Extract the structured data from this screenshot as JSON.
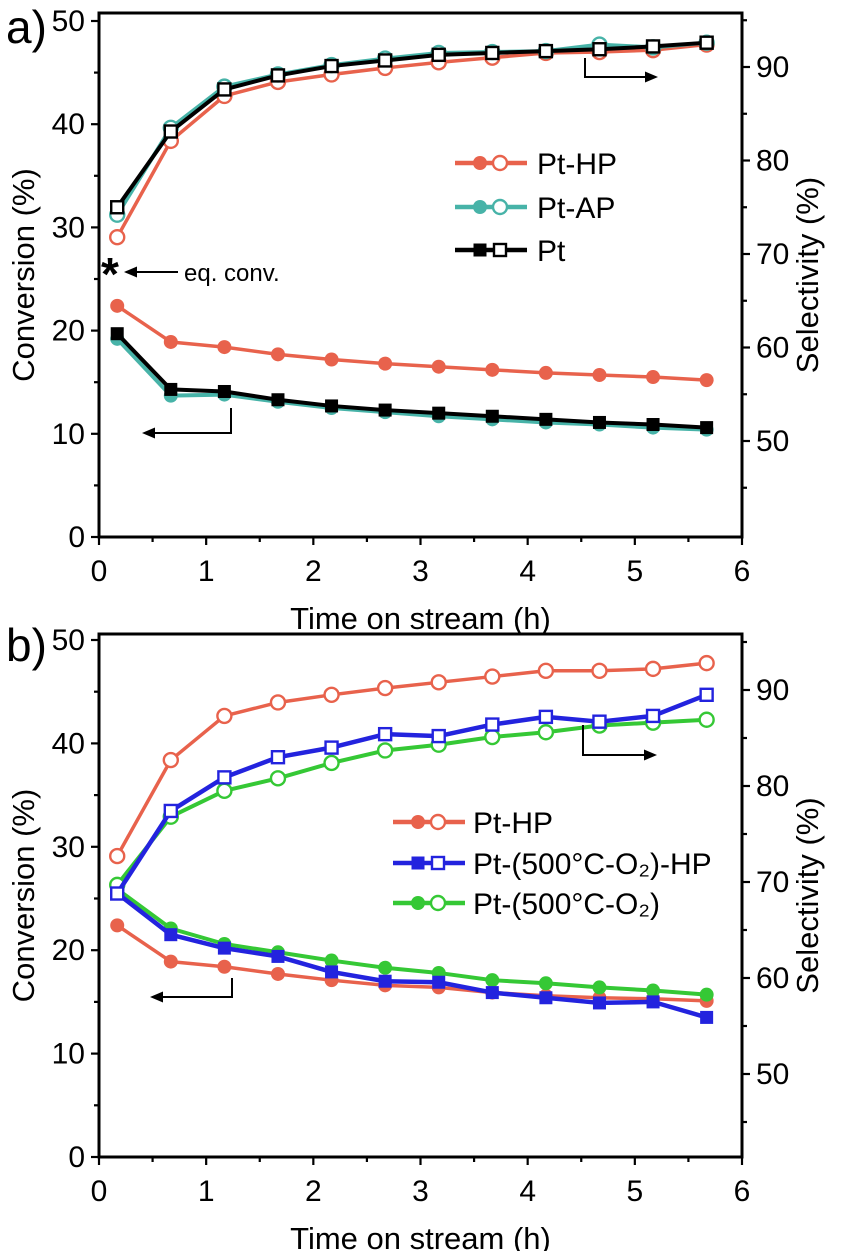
{
  "figure": {
    "background": "#ffffff"
  },
  "chart_data": [
    {
      "panel_label": "a)",
      "type": "line",
      "xlabel": "Time on stream (h)",
      "ylabel_left": "Conversion (%)",
      "ylabel_right": "Selectivity (%)",
      "xlim": [
        0,
        6
      ],
      "x_ticks": [
        0,
        1,
        2,
        3,
        4,
        5,
        6
      ],
      "x_minor_step": 0.5,
      "ylim_left": [
        0,
        50
      ],
      "y_left_ticks": [
        0,
        10,
        20,
        30,
        40,
        50
      ],
      "y_right_ticks": [
        50,
        60,
        70,
        80,
        90
      ],
      "grid": false,
      "legend_position": "center-right",
      "time_h": [
        0.17,
        0.67,
        1.17,
        1.67,
        2.17,
        2.67,
        3.17,
        3.67,
        4.17,
        4.67,
        5.17,
        5.67
      ],
      "series": [
        {
          "name": "Pt-HP",
          "color": "#E8624C",
          "marker": "circle",
          "conversion_pct": [
            22.4,
            18.9,
            18.4,
            17.7,
            17.2,
            16.8,
            16.5,
            16.2,
            15.9,
            15.7,
            15.5,
            15.2
          ],
          "selectivity_pct": [
            71.8,
            82.1,
            86.9,
            88.4,
            89.2,
            89.9,
            90.5,
            91.0,
            91.5,
            91.6,
            91.8,
            92.4
          ]
        },
        {
          "name": "Pt-AP",
          "color": "#47B3A8",
          "marker": "circle",
          "conversion_pct": [
            19.2,
            13.7,
            13.8,
            13.1,
            12.5,
            12.1,
            11.7,
            11.4,
            11.1,
            10.9,
            10.6,
            10.4
          ],
          "selectivity_pct": [
            74.2,
            83.5,
            87.9,
            89.2,
            90.2,
            90.9,
            91.5,
            91.6,
            91.7,
            92.4,
            92.1,
            92.6
          ]
        },
        {
          "name": "Pt",
          "color": "#000000",
          "marker": "square",
          "conversion_pct": [
            19.7,
            14.3,
            14.1,
            13.3,
            12.7,
            12.3,
            12.0,
            11.7,
            11.4,
            11.1,
            10.9,
            10.6
          ],
          "selectivity_pct": [
            75.0,
            83.1,
            87.6,
            89.1,
            90.1,
            90.7,
            91.3,
            91.5,
            91.7,
            91.9,
            92.2,
            92.6
          ]
        }
      ],
      "annotation": {
        "symbol": "*",
        "text": "eq. conv.",
        "at_conversion_pct": 26,
        "at_time_h": 0.17
      }
    },
    {
      "panel_label": "b)",
      "type": "line",
      "xlabel": "Time on stream (h)",
      "ylabel_left": "Conversion (%)",
      "ylabel_right": "Selectivity (%)",
      "xlim": [
        0,
        6
      ],
      "x_ticks": [
        0,
        1,
        2,
        3,
        4,
        5,
        6
      ],
      "x_minor_step": 0.5,
      "ylim_left": [
        0,
        50
      ],
      "y_left_ticks": [
        0,
        10,
        20,
        30,
        40,
        50
      ],
      "y_right_ticks": [
        50,
        60,
        70,
        80,
        90
      ],
      "grid": false,
      "legend_position": "center-right",
      "time_h": [
        0.17,
        0.67,
        1.17,
        1.67,
        2.17,
        2.67,
        3.17,
        3.67,
        4.17,
        4.67,
        5.17,
        5.67
      ],
      "series": [
        {
          "name": "Pt-HP",
          "color": "#E8624C",
          "marker": "circle",
          "conversion_pct": [
            22.4,
            18.9,
            18.4,
            17.7,
            17.1,
            16.6,
            16.4,
            15.9,
            15.6,
            15.4,
            15.3,
            15.1
          ],
          "selectivity_pct": [
            72.7,
            82.7,
            87.3,
            88.7,
            89.5,
            90.2,
            90.8,
            91.4,
            92.0,
            92.0,
            92.2,
            92.8
          ]
        },
        {
          "name": "Pt-(500°C-O₂)-HP",
          "color": "#2323DE",
          "marker": "square",
          "conversion_pct": [
            25.5,
            21.5,
            20.2,
            19.4,
            17.9,
            17.0,
            16.9,
            15.9,
            15.4,
            14.9,
            15.0,
            13.5
          ],
          "selectivity_pct": [
            68.8,
            77.4,
            80.9,
            83.0,
            84.0,
            85.4,
            85.2,
            86.4,
            87.2,
            86.7,
            87.3,
            89.5
          ]
        },
        {
          "name": "Pt-(500°C-O₂)",
          "color": "#35C835",
          "marker": "circle",
          "conversion_pct": [
            25.9,
            22.1,
            20.6,
            19.8,
            19.0,
            18.3,
            17.8,
            17.1,
            16.8,
            16.4,
            16.1,
            15.7
          ],
          "selectivity_pct": [
            69.7,
            76.8,
            79.5,
            80.8,
            82.4,
            83.7,
            84.3,
            85.1,
            85.6,
            86.3,
            86.6,
            86.9
          ]
        }
      ],
      "annotation": null
    }
  ]
}
